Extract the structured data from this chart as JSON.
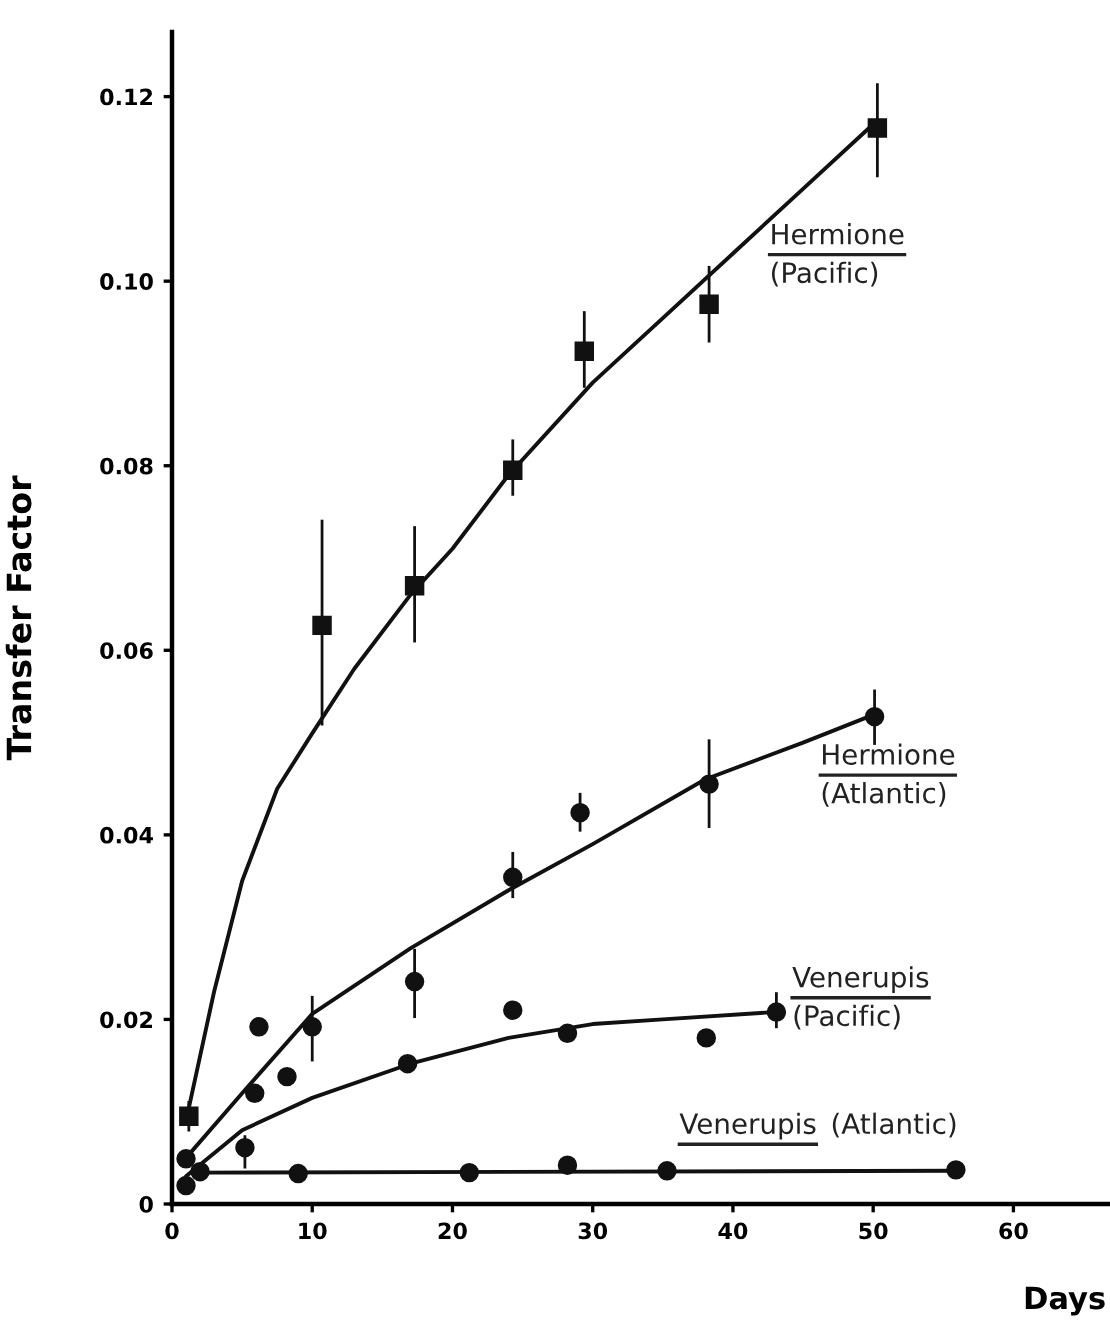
{
  "chart_data": {
    "type": "scatter",
    "xlabel": "Days",
    "ylabel": "Transfer Factor",
    "xlim": [
      0,
      67
    ],
    "ylim": [
      0,
      0.127
    ],
    "xticks": [
      0,
      10,
      20,
      30,
      40,
      50,
      60
    ],
    "yticks": [
      {
        "value": 0,
        "label": "0"
      },
      {
        "value": 0.02,
        "label": "0.02"
      },
      {
        "value": 0.04,
        "label": "0.04"
      },
      {
        "value": 0.06,
        "label": "0.06"
      },
      {
        "value": 0.08,
        "label": "0.08"
      },
      {
        "value": 0.1,
        "label": "0.10"
      },
      {
        "value": 0.12,
        "label": "0.12"
      }
    ],
    "grid": false,
    "legend": false,
    "series": [
      {
        "name": "Hermione\n(Pacific)",
        "marker": "square",
        "color": "#111111",
        "x": [
          1.2,
          10.7,
          17.3,
          24.3,
          29.4,
          38.3,
          50.3
        ],
        "values": [
          0.0095,
          0.0627,
          0.067,
          0.0795,
          0.0924,
          0.0975,
          0.1166
        ],
        "errors": [
          [
            0.008,
            0.011
          ],
          [
            0.052,
            0.074
          ],
          [
            0.061,
            0.0733
          ],
          [
            0.0769,
            0.0827
          ],
          [
            0.0886,
            0.0966
          ],
          [
            0.0935,
            0.1015
          ],
          [
            0.1114,
            0.1213
          ]
        ]
      },
      {
        "type": "line",
        "marker": "none",
        "line_style": "solid",
        "color": "#111111",
        "x": [
          1,
          3,
          5,
          7.5,
          10,
          13,
          17,
          20,
          24,
          30,
          35,
          40,
          45,
          50
        ],
        "values": [
          0.009,
          0.023,
          0.035,
          0.045,
          0.051,
          0.058,
          0.066,
          0.071,
          0.079,
          0.089,
          0.096,
          0.103,
          0.11,
          0.117
        ]
      },
      {
        "name": "Hermione\n(Atlantic)",
        "marker": "circle",
        "color": "#111111",
        "x": [
          1,
          5.9,
          10,
          17.3,
          24.3,
          29.1,
          38.3,
          50.1
        ],
        "values": [
          0.0049,
          0.012,
          0.0192,
          0.0241,
          0.0354,
          0.0424,
          0.0455,
          0.0528
        ],
        "errors": [
          null,
          null,
          [
            0.0156,
            0.0224
          ],
          [
            0.0203,
            0.0275
          ],
          [
            0.0333,
            0.038
          ],
          [
            0.0405,
            0.0444
          ],
          [
            0.0409,
            0.0502
          ],
          [
            0.0499,
            0.0556
          ]
        ]
      },
      {
        "type": "line",
        "marker": "none",
        "line_style": "solid",
        "color": "#111111",
        "x": [
          1,
          5,
          10,
          17,
          24,
          30,
          38,
          45,
          50
        ],
        "values": [
          0.005,
          0.012,
          0.0206,
          0.0277,
          0.034,
          0.039,
          0.046,
          0.05,
          0.053
        ]
      },
      {
        "name": "Venerupis\n(Pacific)",
        "marker": "circle",
        "color": "#111111",
        "x": [
          1,
          5.2,
          6.2,
          8.2,
          16.8,
          24.3,
          28.2,
          38.1,
          43.1
        ],
        "values": [
          0.002,
          0.0061,
          0.0192,
          0.0138,
          0.0152,
          0.021,
          0.0185,
          0.018,
          0.0208
        ],
        "errors": [
          null,
          [
            0.004,
            0.0073
          ],
          null,
          null,
          null,
          null,
          null,
          null,
          [
            0.0192,
            0.0228
          ]
        ]
      },
      {
        "type": "line",
        "marker": "none",
        "line_style": "solid",
        "color": "#111111",
        "x": [
          1,
          5,
          10,
          17,
          24,
          30,
          35,
          43
        ],
        "values": [
          0.003,
          0.008,
          0.0115,
          0.0152,
          0.018,
          0.0195,
          0.02,
          0.0208
        ]
      },
      {
        "name": "Venerupis (Atlantic)",
        "marker": "circle",
        "color": "#111111",
        "x": [
          2,
          9,
          21.2,
          28.2,
          35.3,
          55.9
        ],
        "values": [
          0.0035,
          0.0033,
          0.0034,
          0.0042,
          0.0036,
          0.0037
        ]
      },
      {
        "type": "line",
        "marker": "none",
        "line_style": "solid",
        "color": "#111111",
        "x": [
          2,
          56
        ],
        "values": [
          0.0034,
          0.0036
        ]
      }
    ]
  }
}
